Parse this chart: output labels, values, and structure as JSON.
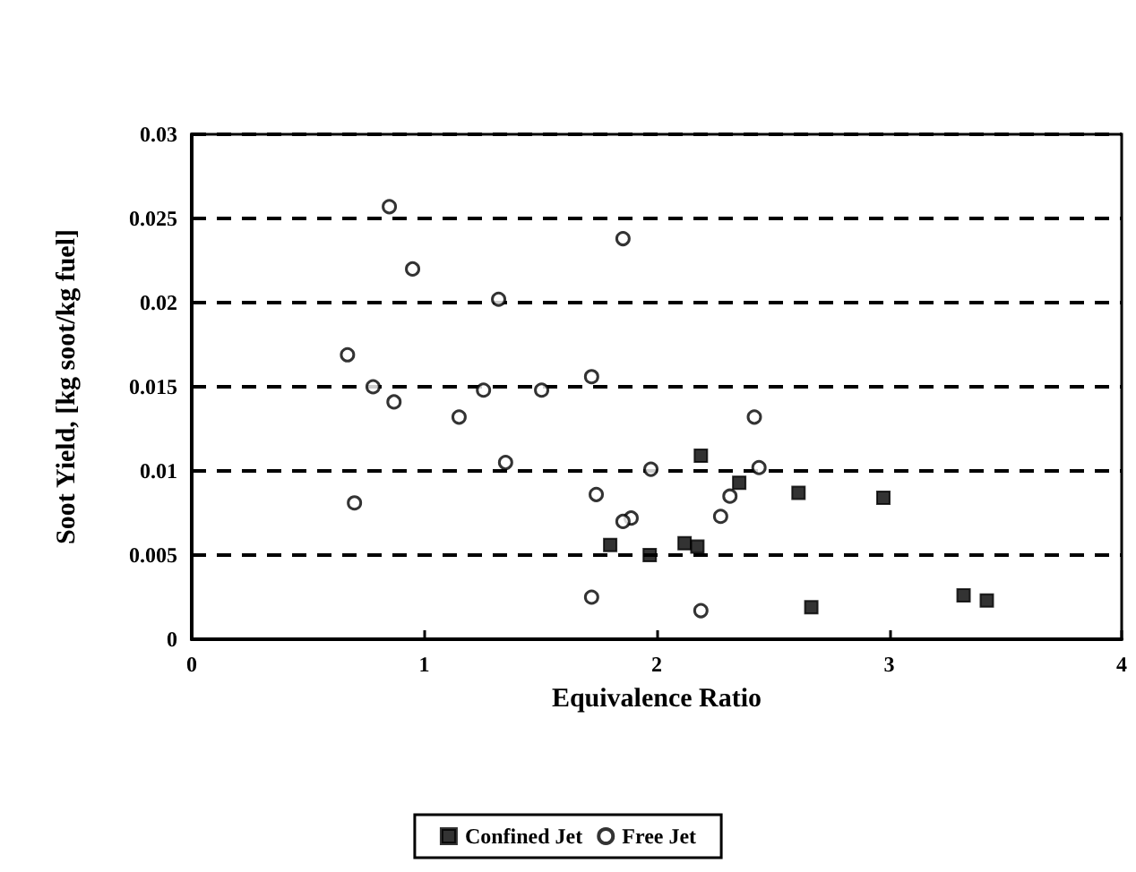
{
  "chart_data": {
    "type": "scatter",
    "xlabel": "Equivalence Ratio",
    "ylabel": "Soot Yield, [kg soot/kg fuel]",
    "xlim": [
      0,
      4
    ],
    "xticks": [
      0,
      1,
      2,
      3,
      4
    ],
    "ylim": [
      0,
      0.03
    ],
    "yticks": [
      0,
      0.005,
      0.01,
      0.015,
      0.02,
      0.025,
      0.03
    ],
    "grid": "y",
    "legend": "bottom",
    "series": [
      {
        "name": "Confined Jet",
        "color": "#000000",
        "marker": "square",
        "x": [
          1.8,
          1.97,
          2.12,
          2.175,
          2.19,
          2.355,
          2.61,
          2.975,
          2.665,
          3.32,
          3.42
        ],
        "values": [
          0.0056,
          0.005,
          0.0057,
          0.0055,
          0.0109,
          0.0093,
          0.0087,
          0.0084,
          0.0019,
          0.0026,
          0.0023
        ]
      },
      {
        "name": "Free Jet",
        "color": "#000000",
        "marker": "circle",
        "x": [
          0.85,
          1.855,
          0.95,
          1.32,
          0.67,
          0.78,
          1.255,
          1.505,
          1.72,
          0.87,
          1.15,
          1.35,
          1.975,
          0.7,
          1.74,
          1.89,
          1.855,
          1.72,
          2.42,
          2.44,
          2.315,
          2.275,
          2.19
        ],
        "values": [
          0.0257,
          0.0238,
          0.022,
          0.0202,
          0.0169,
          0.015,
          0.0148,
          0.0148,
          0.0156,
          0.0141,
          0.0132,
          0.0105,
          0.0101,
          0.0081,
          0.0086,
          0.0072,
          0.007,
          0.0025,
          0.0132,
          0.0102,
          0.0085,
          0.0073,
          0.0017
        ]
      }
    ]
  }
}
